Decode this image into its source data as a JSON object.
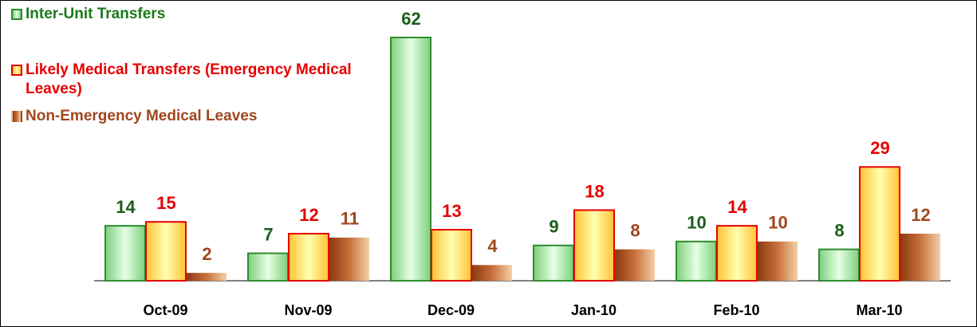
{
  "chart_data": {
    "type": "bar",
    "categories": [
      "Oct-09",
      "Nov-09",
      "Dec-09",
      "Jan-10",
      "Feb-10",
      "Mar-10"
    ],
    "series": [
      {
        "name": "Inter-Unit Transfers",
        "color": "#2e8b2e",
        "values": [
          14,
          7,
          62,
          9,
          10,
          8
        ]
      },
      {
        "name": "Likely Medical Transfers (Emergency Medical Leaves)",
        "color": "#e60000",
        "values": [
          15,
          12,
          13,
          18,
          14,
          29
        ]
      },
      {
        "name": "Non-Emergency Medical Leaves",
        "color": "#a0461e",
        "values": [
          2,
          11,
          4,
          8,
          10,
          12
        ]
      }
    ],
    "legend": "upper left"
  }
}
